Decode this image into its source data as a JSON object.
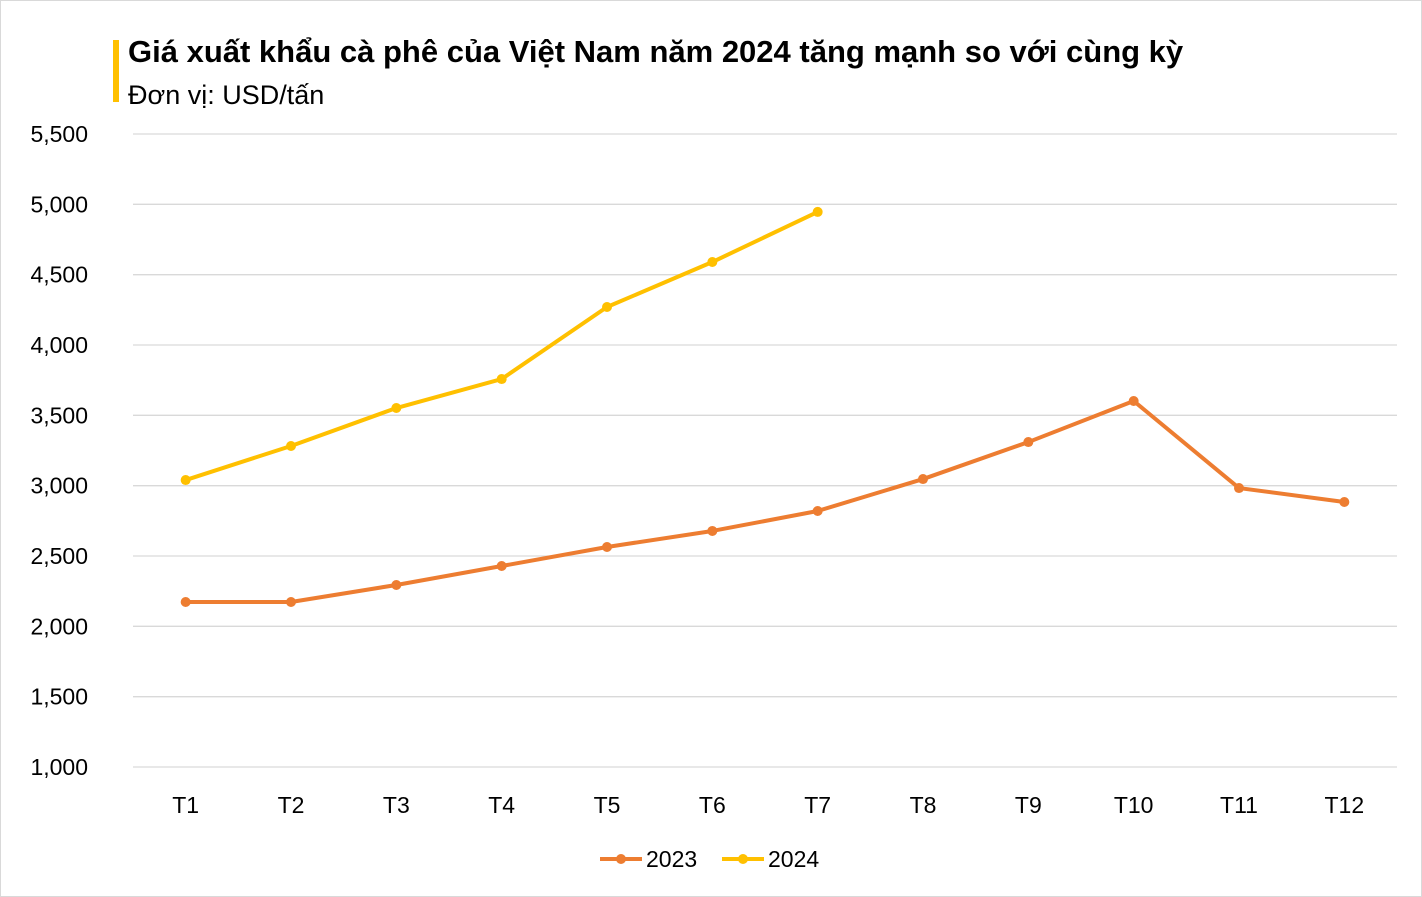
{
  "chart_data": {
    "type": "line",
    "title": "Giá xuất khẩu cà phê của Việt Nam năm 2024 tăng mạnh so với cùng kỳ",
    "subtitle": "Đơn vị: USD/tấn",
    "categories": [
      "T1",
      "T2",
      "T3",
      "T4",
      "T5",
      "T6",
      "T7",
      "T8",
      "T9",
      "T10",
      "T11",
      "T12"
    ],
    "series": [
      {
        "name": "2023",
        "color": "#ed7d31",
        "values": [
          2173,
          2173,
          2294,
          2429,
          2564,
          2678,
          2820,
          3047,
          3310,
          3602,
          2983,
          2884
        ]
      },
      {
        "name": "2024",
        "color": "#ffc000",
        "values": [
          3040,
          3282,
          3552,
          3758,
          4270,
          4590,
          4946,
          null,
          null,
          null,
          null,
          null
        ]
      }
    ],
    "ylim": [
      1000,
      5500
    ],
    "yticks": [
      1000,
      1500,
      2000,
      2500,
      3000,
      3500,
      4000,
      4500,
      5000,
      5500
    ],
    "ytick_labels": [
      "1,000",
      "1,500",
      "2,000",
      "2,500",
      "3,000",
      "3,500",
      "4,000",
      "4,500",
      "5,000",
      "5,500"
    ],
    "grid": true,
    "legend": "bottom",
    "accent_color": "#ffc000"
  }
}
